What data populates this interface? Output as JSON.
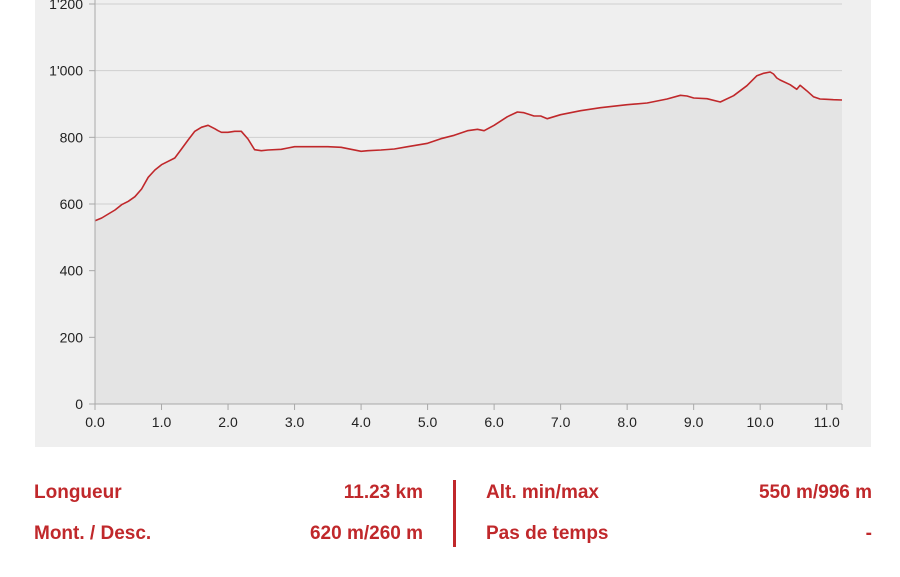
{
  "colors": {
    "accent": "#c0282b",
    "panel_background": "#efefef",
    "area_fill": "#e4e4e4",
    "gridline": "#cfcfcf",
    "axis": "#a8a8a8",
    "tick_text": "#222222"
  },
  "chart_data": {
    "type": "area",
    "title": "",
    "xlabel": "",
    "ylabel": "",
    "xlim": [
      0,
      11.23
    ],
    "ylim": [
      0,
      1200
    ],
    "x_ticks": [
      0,
      1,
      2,
      3,
      4,
      5,
      6,
      7,
      8,
      9,
      10,
      11
    ],
    "x_tick_labels": [
      "0.0",
      "1.0",
      "2.0",
      "3.0",
      "4.0",
      "5.0",
      "6.0",
      "7.0",
      "8.0",
      "9.0",
      "10.0",
      "11.0"
    ],
    "y_ticks": [
      0,
      200,
      400,
      600,
      800,
      1000,
      1200
    ],
    "y_tick_labels": [
      "0",
      "200",
      "400",
      "600",
      "800",
      "1'000",
      "1'200"
    ],
    "grid": true,
    "series": [
      {
        "x": [
          0,
          0.1,
          0.2,
          0.3,
          0.4,
          0.5,
          0.6,
          0.7,
          0.8,
          0.9,
          1.0,
          1.1,
          1.2,
          1.3,
          1.4,
          1.5,
          1.6,
          1.7,
          1.8,
          1.85,
          1.9,
          2.0,
          2.1,
          2.2,
          2.3,
          2.4,
          2.5,
          2.6,
          2.8,
          2.9,
          3.0,
          3.1,
          3.3,
          3.5,
          3.7,
          4.0,
          4.1,
          4.3,
          4.5,
          4.7,
          5.0,
          5.2,
          5.4,
          5.6,
          5.75,
          5.85,
          6.0,
          6.2,
          6.35,
          6.45,
          6.6,
          6.7,
          6.8,
          7.0,
          7.3,
          7.6,
          8.0,
          8.3,
          8.6,
          8.8,
          8.9,
          9.0,
          9.2,
          9.4,
          9.6,
          9.8,
          9.95,
          10.05,
          10.15,
          10.2,
          10.25,
          10.3,
          10.45,
          10.55,
          10.6,
          10.7,
          10.8,
          10.9,
          11.0,
          11.1,
          11.23
        ],
        "y": [
          550,
          558,
          570,
          582,
          598,
          608,
          622,
          645,
          680,
          702,
          718,
          728,
          738,
          765,
          792,
          818,
          830,
          836,
          826,
          820,
          815,
          815,
          818,
          818,
          795,
          763,
          760,
          762,
          764,
          768,
          772,
          772,
          772,
          772,
          770,
          758,
          760,
          762,
          765,
          772,
          782,
          796,
          806,
          820,
          824,
          820,
          836,
          862,
          876,
          874,
          864,
          864,
          856,
          868,
          880,
          889,
          898,
          903,
          915,
          926,
          924,
          918,
          916,
          906,
          925,
          955,
          985,
          992,
          996,
          990,
          978,
          972,
          958,
          944,
          956,
          940,
          922,
          915,
          914,
          913,
          912
        ]
      }
    ]
  },
  "stats": {
    "length_label": "Longueur",
    "length_value": "11.23 km",
    "ascent_label": "Mont. / Desc.",
    "ascent_value": "620 m/260 m",
    "altitude_label": "Alt. min/max",
    "altitude_value": "550 m/996 m",
    "time_label": "Pas de temps",
    "time_value": "-"
  }
}
